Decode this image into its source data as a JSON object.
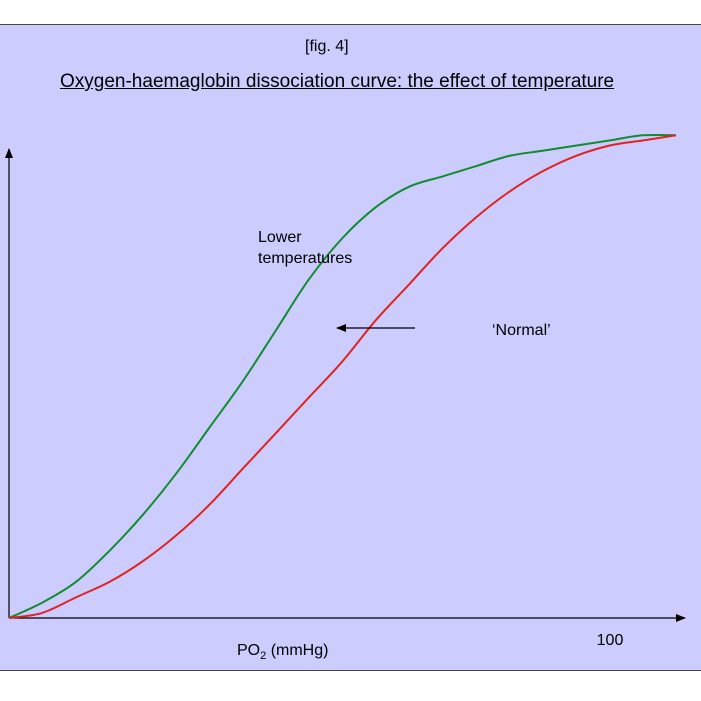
{
  "figure": {
    "label": "[fig. 4]",
    "title": "Oxygen-haemaglobin dissociation curve: the effect of temperature"
  },
  "chart_data": {
    "type": "line",
    "title": "Oxygen-haemaglobin dissociation curve: the effect of temperature",
    "xlabel": "PO",
    "xlabel_subscript": "2",
    "xlabel_unit": " (mmHg)",
    "ylabel": "",
    "xlim": [
      0,
      103
    ],
    "ylim": [
      0,
      104
    ],
    "x_tick_labels": [
      {
        "x": 100,
        "label": "100"
      }
    ],
    "grid": false,
    "series": [
      {
        "name": "Lower temperatures",
        "label_lines": [
          "Lower",
          "temperatures"
        ],
        "color": "#128c2e",
        "points": [
          [
            0,
            0
          ],
          [
            5,
            3
          ],
          [
            10,
            7
          ],
          [
            15,
            13
          ],
          [
            20,
            20
          ],
          [
            25,
            28
          ],
          [
            30,
            37
          ],
          [
            35,
            46
          ],
          [
            40,
            56
          ],
          [
            45,
            66
          ],
          [
            50,
            74
          ],
          [
            55,
            80
          ],
          [
            60,
            84
          ],
          [
            65,
            86
          ],
          [
            70,
            88
          ],
          [
            75,
            90
          ],
          [
            80,
            91
          ],
          [
            85,
            92
          ],
          [
            90,
            93
          ],
          [
            95,
            94
          ],
          [
            100,
            94
          ]
        ]
      },
      {
        "name": "'Normal'",
        "label_lines": [
          "‘Normal’"
        ],
        "color": "#e0241f",
        "points": [
          [
            0,
            0
          ],
          [
            5,
            1
          ],
          [
            10,
            4
          ],
          [
            15,
            7
          ],
          [
            20,
            11
          ],
          [
            25,
            16
          ],
          [
            30,
            22
          ],
          [
            35,
            29
          ],
          [
            40,
            36
          ],
          [
            45,
            43
          ],
          [
            50,
            50
          ],
          [
            55,
            58
          ],
          [
            60,
            65
          ],
          [
            65,
            72
          ],
          [
            70,
            78
          ],
          [
            75,
            83
          ],
          [
            80,
            87
          ],
          [
            85,
            90
          ],
          [
            90,
            92
          ],
          [
            95,
            93
          ],
          [
            100,
            94
          ]
        ]
      }
    ],
    "annotation": {
      "type": "arrow",
      "direction": "left"
    }
  }
}
